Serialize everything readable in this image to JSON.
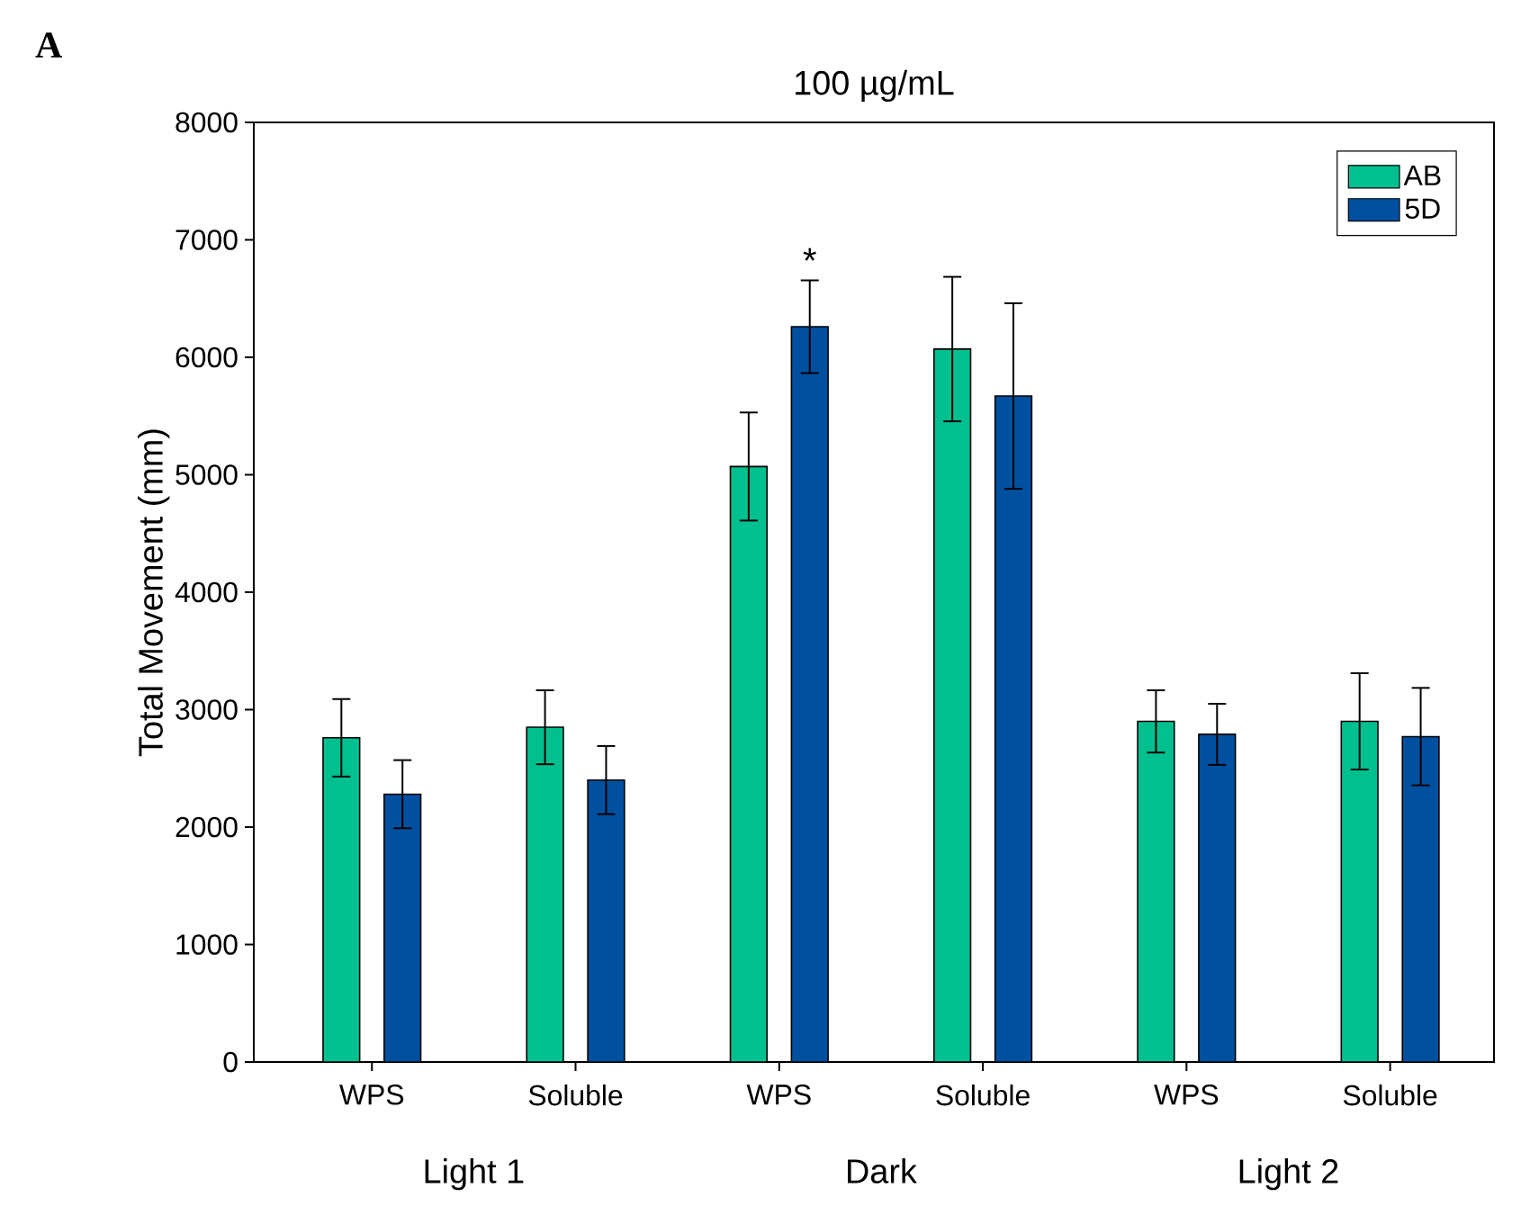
{
  "chart_data": {
    "type": "bar",
    "title": "100 µg/mL",
    "ylabel": "Total Movement (mm)",
    "categories": [
      "WPS",
      "Soluble",
      "WPS",
      "Soluble",
      "WPS",
      "Soluble"
    ],
    "series": [
      {
        "name": "AB",
        "color": "#00c08f",
        "values": [
          2760,
          2850,
          5070,
          6070,
          2900,
          2900
        ],
        "errors": [
          330,
          315,
          460,
          615,
          265,
          410
        ]
      },
      {
        "name": "5D",
        "color": "#0050a0",
        "values": [
          2280,
          2400,
          6260,
          5670,
          2790,
          2770
        ],
        "errors": [
          290,
          290,
          395,
          790,
          260,
          415
        ]
      }
    ],
    "ylim": [
      0,
      8000
    ],
    "yticks": [
      0,
      1000,
      2000,
      3000,
      4000,
      5000,
      6000,
      7000,
      8000
    ],
    "legend": "top right",
    "annotations": [
      "Light 1",
      "Dark",
      "Light 2",
      "A",
      "*"
    ]
  }
}
